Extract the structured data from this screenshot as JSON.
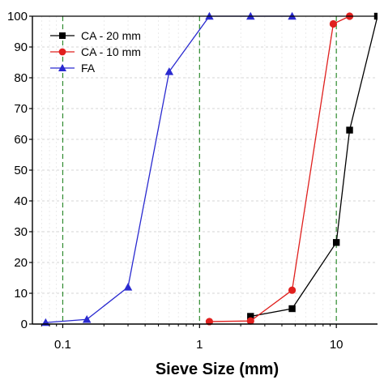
{
  "chart_data": {
    "type": "line",
    "xlabel": "Sieve Size (mm)",
    "ylabel": "",
    "x_scale": "log",
    "xlim": [
      0.06,
      20
    ],
    "ylim": [
      0,
      100
    ],
    "x_ticks": [
      {
        "value": 0.1,
        "label": "0.1"
      },
      {
        "value": 1,
        "label": "1"
      },
      {
        "value": 10,
        "label": "10"
      }
    ],
    "y_ticks": [
      0,
      10,
      20,
      30,
      40,
      50,
      60,
      70,
      80,
      90,
      100
    ],
    "grid": "dashed",
    "reference_lines": {
      "x": [
        0.1,
        1,
        10
      ],
      "style": "dashed",
      "color": "#2e8b2e"
    },
    "legend_position": "top-left",
    "series": [
      {
        "name": "CA - 20 mm",
        "color": "#000000",
        "marker": "square",
        "x": [
          2.36,
          4.75,
          10,
          12.5,
          20
        ],
        "y": [
          2.5,
          5,
          26.5,
          63,
          100
        ]
      },
      {
        "name": "CA - 10 mm",
        "color": "#e0201e",
        "marker": "circle",
        "x": [
          1.18,
          2.36,
          4.75,
          9.5,
          12.5
        ],
        "y": [
          0.8,
          1,
          11,
          97.5,
          100
        ]
      },
      {
        "name": "FA",
        "color": "#2a2ad0",
        "marker": "triangle",
        "x": [
          0.075,
          0.15,
          0.3,
          0.6,
          1.18,
          2.36,
          4.75
        ],
        "y": [
          0.5,
          1.5,
          12,
          82,
          100,
          100,
          100
        ]
      }
    ]
  }
}
